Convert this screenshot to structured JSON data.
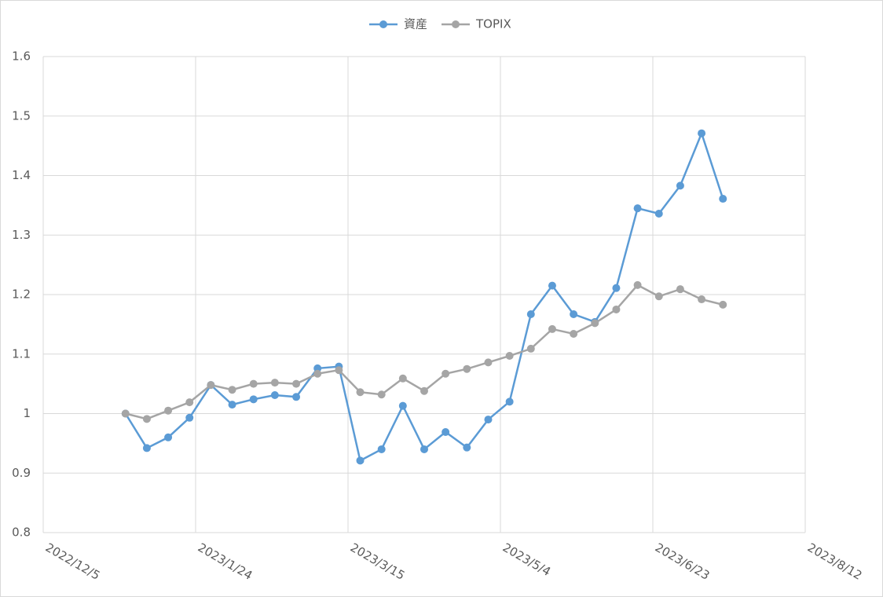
{
  "chart_data": {
    "type": "line",
    "x": [
      "2023/1/1",
      "2023/1/8",
      "2023/1/15",
      "2023/1/22",
      "2023/1/29",
      "2023/2/5",
      "2023/2/12",
      "2023/2/19",
      "2023/2/26",
      "2023/3/5",
      "2023/3/12",
      "2023/3/19",
      "2023/3/26",
      "2023/4/2",
      "2023/4/9",
      "2023/4/16",
      "2023/4/23",
      "2023/4/30",
      "2023/5/7",
      "2023/5/14",
      "2023/5/21",
      "2023/5/28",
      "2023/6/4",
      "2023/6/11",
      "2023/6/18",
      "2023/6/25",
      "2023/7/2",
      "2023/7/9",
      "2023/7/16"
    ],
    "series": [
      {
        "name": "資産",
        "color": "#5b9bd5",
        "values": [
          1.0,
          0.942,
          0.96,
          0.993,
          1.048,
          1.015,
          1.024,
          1.031,
          1.028,
          1.076,
          1.079,
          0.921,
          0.94,
          1.013,
          0.94,
          0.969,
          0.943,
          0.99,
          1.02,
          1.167,
          1.215,
          1.167,
          1.154,
          1.211,
          1.345,
          1.336,
          1.383,
          1.471,
          1.361
        ]
      },
      {
        "name": "TOPIX",
        "color": "#a5a5a5",
        "values": [
          1.0,
          0.991,
          1.005,
          1.019,
          1.048,
          1.04,
          1.05,
          1.052,
          1.05,
          1.067,
          1.073,
          1.036,
          1.032,
          1.059,
          1.038,
          1.067,
          1.075,
          1.086,
          1.097,
          1.109,
          1.142,
          1.134,
          1.152,
          1.175,
          1.216,
          1.197,
          1.209,
          1.192,
          1.183
        ]
      }
    ],
    "xlim": [
      "2022/12/5",
      "2023/8/12"
    ],
    "xticks": [
      "2022/12/5",
      "2023/1/24",
      "2023/3/15",
      "2023/5/4",
      "2023/6/23",
      "2023/8/12"
    ],
    "ylim": [
      0.8,
      1.6
    ],
    "yticks": [
      0.8,
      0.9,
      1,
      1.1,
      1.2,
      1.3,
      1.4,
      1.5,
      1.6
    ],
    "grid": true,
    "legend": "top"
  }
}
